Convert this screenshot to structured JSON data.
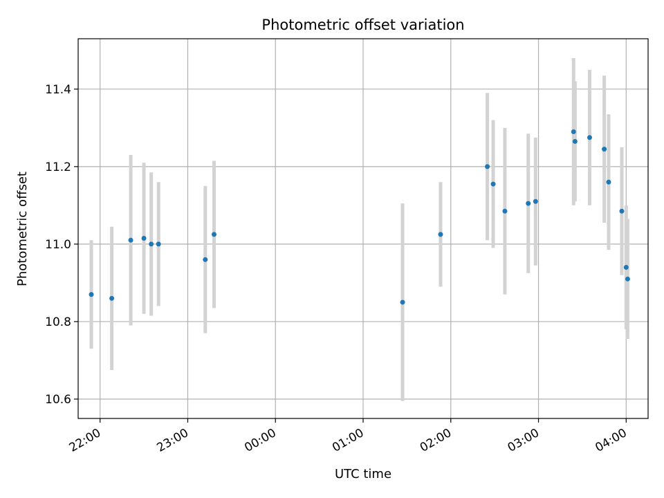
{
  "chart_data": {
    "type": "scatter",
    "title": "Photometric offset variation",
    "xlabel": "UTC time",
    "ylabel": "Photometric offset",
    "x_ticks": [
      "22:00",
      "23:00",
      "00:00",
      "01:00",
      "02:00",
      "03:00",
      "04:00"
    ],
    "y_ticks": [
      "10.6",
      "10.8",
      "11.0",
      "11.2",
      "11.4"
    ],
    "xlim": [
      "21:45",
      "04:15"
    ],
    "ylim": [
      10.55,
      11.53
    ],
    "grid": true,
    "colors": {
      "points": "#1f77b4",
      "errorbars": "#d3d3d3",
      "grid": "#b0b0b0"
    },
    "points": [
      {
        "x": "21:54",
        "y": 10.87,
        "err": 0.14
      },
      {
        "x": "22:08",
        "y": 10.86,
        "err": 0.185
      },
      {
        "x": "22:21",
        "y": 11.01,
        "err": 0.22
      },
      {
        "x": "22:30",
        "y": 11.015,
        "err": 0.195
      },
      {
        "x": "22:35",
        "y": 11.0,
        "err": 0.185
      },
      {
        "x": "22:40",
        "y": 11.0,
        "err": 0.16
      },
      {
        "x": "23:12",
        "y": 10.96,
        "err": 0.19
      },
      {
        "x": "23:18",
        "y": 11.025,
        "err": 0.19
      },
      {
        "x": "01:27",
        "y": 10.85,
        "err": 0.255
      },
      {
        "x": "01:53",
        "y": 11.025,
        "err": 0.135
      },
      {
        "x": "02:25",
        "y": 11.2,
        "err": 0.19
      },
      {
        "x": "02:29",
        "y": 11.155,
        "err": 0.165
      },
      {
        "x": "02:37",
        "y": 11.085,
        "err": 0.215
      },
      {
        "x": "02:53",
        "y": 11.105,
        "err": 0.18
      },
      {
        "x": "02:58",
        "y": 11.11,
        "err": 0.165
      },
      {
        "x": "03:24",
        "y": 11.29,
        "err": 0.19
      },
      {
        "x": "03:25",
        "y": 11.265,
        "err": 0.155
      },
      {
        "x": "03:35",
        "y": 11.275,
        "err": 0.175
      },
      {
        "x": "03:45",
        "y": 11.245,
        "err": 0.19
      },
      {
        "x": "03:48",
        "y": 11.16,
        "err": 0.175
      },
      {
        "x": "03:57",
        "y": 11.085,
        "err": 0.165
      },
      {
        "x": "04:00",
        "y": 10.94,
        "err": 0.16
      },
      {
        "x": "04:01",
        "y": 10.91,
        "err": 0.155
      }
    ]
  }
}
